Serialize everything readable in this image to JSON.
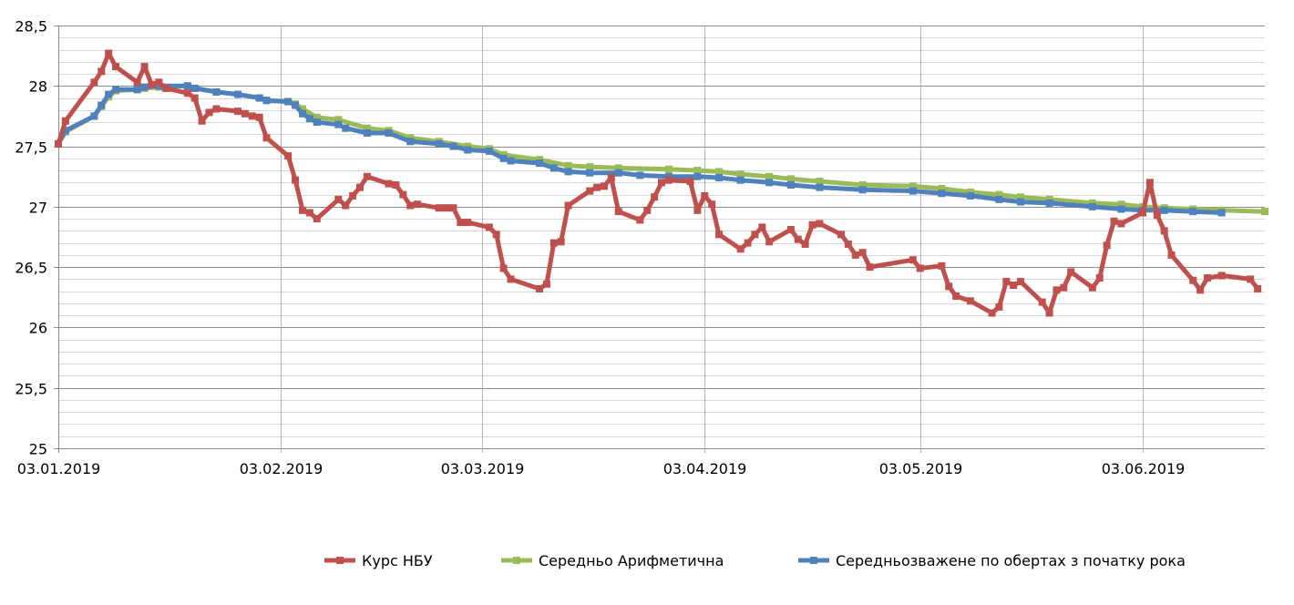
{
  "chart_data": {
    "type": "line",
    "title": "",
    "xlabel": "",
    "ylabel": "",
    "x_unit": "days since 03.01.2019",
    "xlim": [
      0,
      168
    ],
    "ylim": [
      25,
      28.5
    ],
    "y_major_step": 0.5,
    "y_minor_step": 0.1,
    "grid": true,
    "legend_position": "bottom",
    "y_ticks": [
      {
        "value": 25,
        "label": "25"
      },
      {
        "value": 25.5,
        "label": "25,5"
      },
      {
        "value": 26,
        "label": "26"
      },
      {
        "value": 26.5,
        "label": "26,5"
      },
      {
        "value": 27,
        "label": "27"
      },
      {
        "value": 27.5,
        "label": "27,5"
      },
      {
        "value": 28,
        "label": "28"
      },
      {
        "value": 28.5,
        "label": "28,5"
      }
    ],
    "x_ticks": [
      {
        "value": 0,
        "label": "03.01.2019"
      },
      {
        "value": 31,
        "label": "03.02.2019"
      },
      {
        "value": 59,
        "label": "03.03.2019"
      },
      {
        "value": 90,
        "label": "03.04.2019"
      },
      {
        "value": 120,
        "label": "03.05.2019"
      },
      {
        "value": 151,
        "label": "03.06.2019"
      }
    ],
    "series": [
      {
        "name": "Середньо Арифметична",
        "color": "#9bbb59",
        "x": [
          0,
          1,
          5,
          6,
          7,
          8,
          11,
          12,
          14,
          18,
          19,
          22,
          25,
          28,
          29,
          32,
          33,
          34,
          36,
          39,
          43,
          46,
          49,
          53,
          57,
          60,
          62,
          67,
          71,
          74,
          78,
          85,
          89,
          92,
          95,
          99,
          102,
          106,
          112,
          119,
          123,
          127,
          131,
          134,
          138,
          144,
          148,
          151,
          154,
          158,
          162,
          168
        ],
        "y": [
          27.52,
          27.62,
          27.75,
          27.83,
          27.91,
          27.96,
          27.97,
          27.98,
          27.99,
          28.0,
          27.98,
          27.95,
          27.93,
          27.9,
          27.88,
          27.87,
          27.85,
          27.81,
          27.74,
          27.72,
          27.65,
          27.63,
          27.57,
          27.54,
          27.5,
          27.48,
          27.43,
          27.39,
          27.34,
          27.33,
          27.32,
          27.31,
          27.3,
          27.29,
          27.27,
          27.25,
          27.23,
          27.21,
          27.18,
          27.17,
          27.15,
          27.12,
          27.1,
          27.08,
          27.06,
          27.03,
          27.02,
          27.0,
          26.99,
          26.98,
          26.97,
          26.96
        ]
      },
      {
        "name": "Середньозважене по обертах з початку рока",
        "color": "#4f81bd",
        "x": [
          0,
          1,
          5,
          6,
          7,
          8,
          11,
          12,
          14,
          18,
          19,
          22,
          25,
          28,
          29,
          32,
          33,
          34,
          35,
          36,
          39,
          40,
          43,
          46,
          49,
          53,
          55,
          57,
          60,
          62,
          63,
          67,
          69,
          71,
          74,
          78,
          81,
          85,
          89,
          92,
          95,
          99,
          102,
          106,
          112,
          119,
          123,
          127,
          131,
          134,
          138,
          144,
          148,
          151,
          154,
          158,
          162
        ],
        "y": [
          27.52,
          27.63,
          27.75,
          27.84,
          27.93,
          27.97,
          27.97,
          27.99,
          28.0,
          28.0,
          27.98,
          27.95,
          27.93,
          27.9,
          27.88,
          27.87,
          27.84,
          27.77,
          27.73,
          27.7,
          27.68,
          27.65,
          27.61,
          27.61,
          27.54,
          27.52,
          27.5,
          27.47,
          27.46,
          27.4,
          27.38,
          27.36,
          27.32,
          27.29,
          27.28,
          27.28,
          27.26,
          27.25,
          27.25,
          27.24,
          27.22,
          27.2,
          27.18,
          27.16,
          27.14,
          27.13,
          27.11,
          27.09,
          27.06,
          27.04,
          27.03,
          27.0,
          26.98,
          26.97,
          26.97,
          26.96,
          26.95
        ]
      },
      {
        "name": "Курс НБУ",
        "color": "#c0504d",
        "x": [
          0,
          1,
          5,
          6,
          7,
          8,
          11,
          12,
          13,
          14,
          15,
          18,
          19,
          20,
          21,
          22,
          25,
          26,
          27,
          28,
          29,
          32,
          33,
          34,
          35,
          36,
          39,
          40,
          41,
          42,
          43,
          46,
          47,
          48,
          49,
          50,
          53,
          54,
          55,
          56,
          57,
          60,
          61,
          62,
          63,
          67,
          68,
          69,
          70,
          71,
          74,
          75,
          76,
          77,
          78,
          81,
          82,
          83,
          84,
          85,
          88,
          89,
          90,
          91,
          92,
          95,
          96,
          97,
          98,
          99,
          102,
          103,
          104,
          105,
          106,
          109,
          110,
          111,
          112,
          113,
          119,
          120,
          123,
          124,
          125,
          127,
          130,
          131,
          132,
          133,
          134,
          137,
          138,
          139,
          140,
          141,
          144,
          145,
          146,
          147,
          148,
          151,
          152,
          153,
          154,
          155,
          158,
          159,
          160,
          162,
          166,
          167
        ],
        "y": [
          27.52,
          27.71,
          28.03,
          28.12,
          28.27,
          28.16,
          28.03,
          28.16,
          28.01,
          28.03,
          27.98,
          27.94,
          27.9,
          27.71,
          27.78,
          27.81,
          27.79,
          27.77,
          27.75,
          27.74,
          27.57,
          27.42,
          27.22,
          26.97,
          26.95,
          26.9,
          27.06,
          27.01,
          27.09,
          27.16,
          27.25,
          27.19,
          27.18,
          27.1,
          27.01,
          27.02,
          26.99,
          26.99,
          26.99,
          26.87,
          26.87,
          26.83,
          26.77,
          26.49,
          26.4,
          26.32,
          26.36,
          26.7,
          26.71,
          27.01,
          27.13,
          27.16,
          27.17,
          27.24,
          26.96,
          26.89,
          26.97,
          27.08,
          27.2,
          27.22,
          27.21,
          26.97,
          27.09,
          27.02,
          26.77,
          26.65,
          26.7,
          26.77,
          26.83,
          26.71,
          26.81,
          26.73,
          26.69,
          26.85,
          26.86,
          26.77,
          26.69,
          26.6,
          26.62,
          26.5,
          26.56,
          26.49,
          26.51,
          26.34,
          26.26,
          26.22,
          26.12,
          26.17,
          26.38,
          26.35,
          26.38,
          26.21,
          26.12,
          26.31,
          26.33,
          26.46,
          26.33,
          26.41,
          26.68,
          26.88,
          26.86,
          26.95,
          27.2,
          26.93,
          26.8,
          26.6,
          26.39,
          26.31,
          26.41,
          26.43,
          26.4,
          26.32
        ]
      }
    ],
    "legend_order": [
      2,
      0,
      1
    ]
  }
}
